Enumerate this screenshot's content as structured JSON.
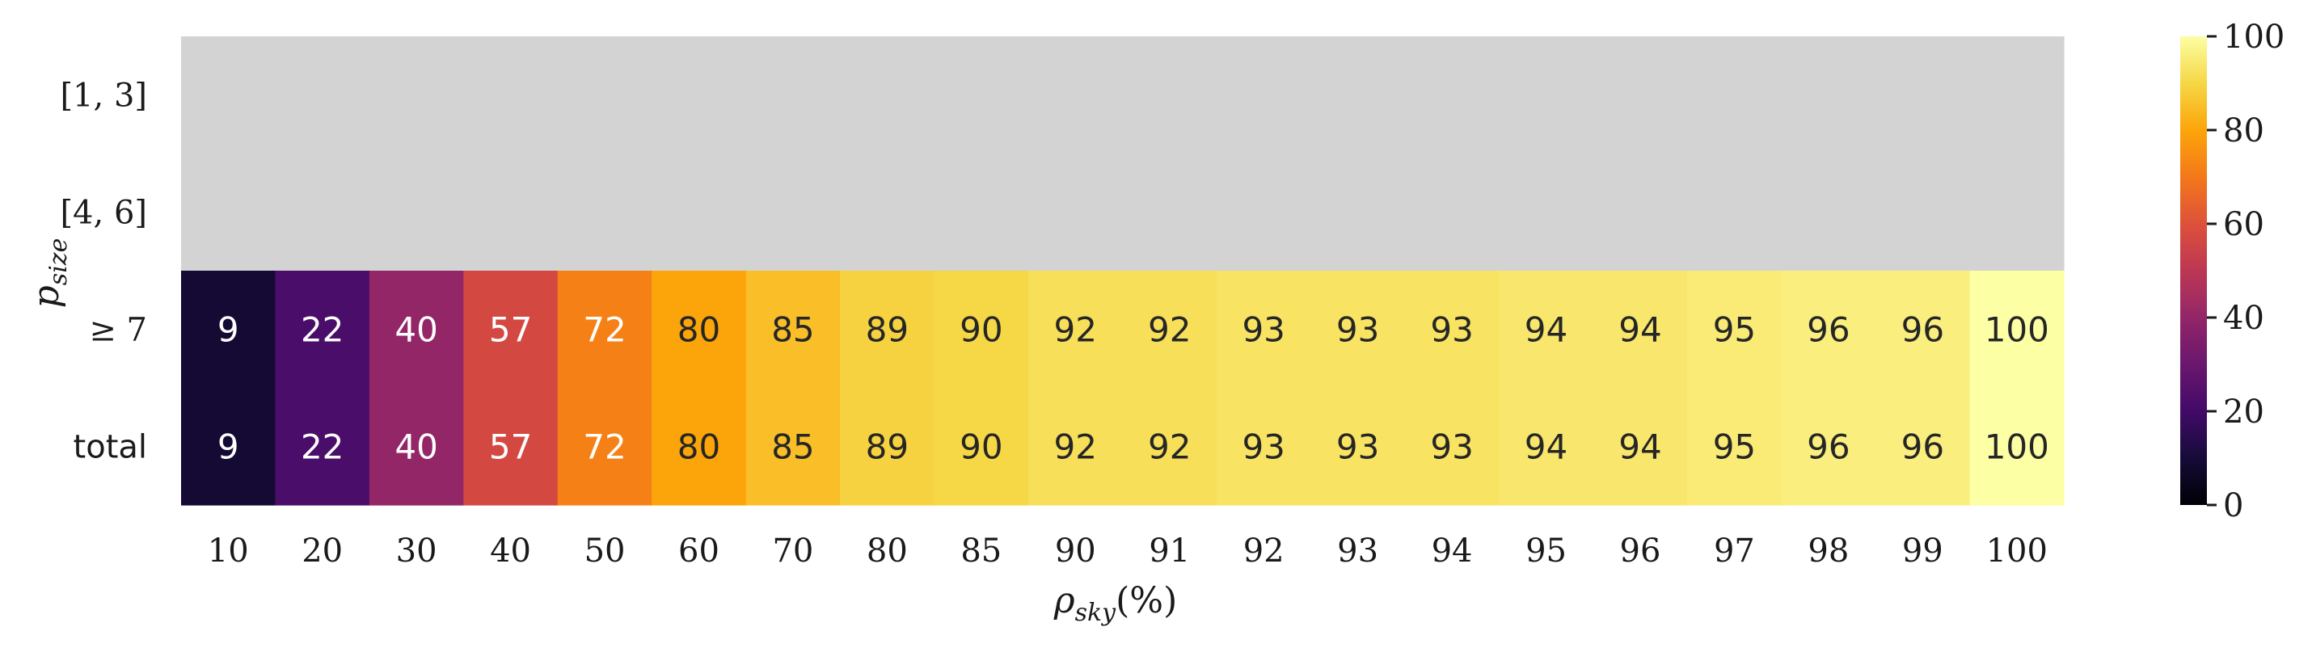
{
  "chart_data": {
    "type": "heatmap",
    "xlabel_base": "ρ",
    "xlabel_sub": "sky",
    "xlabel_tail": "(%)",
    "ylabel_base": "p",
    "ylabel_sub": "size",
    "x_categories": [
      "10",
      "20",
      "30",
      "40",
      "50",
      "60",
      "70",
      "80",
      "85",
      "90",
      "91",
      "92",
      "93",
      "94",
      "95",
      "96",
      "97",
      "98",
      "99",
      "100"
    ],
    "y_categories": [
      "[1, 3]",
      "[4, 6]",
      "≥ 7",
      "total"
    ],
    "values": [
      [
        null,
        null,
        null,
        null,
        null,
        null,
        null,
        null,
        null,
        null,
        null,
        null,
        null,
        null,
        null,
        null,
        null,
        null,
        null,
        null
      ],
      [
        null,
        null,
        null,
        null,
        null,
        null,
        null,
        null,
        null,
        null,
        null,
        null,
        null,
        null,
        null,
        null,
        null,
        null,
        null,
        null
      ],
      [
        9,
        22,
        40,
        57,
        72,
        80,
        85,
        89,
        90,
        92,
        92,
        93,
        93,
        93,
        94,
        94,
        95,
        96,
        96,
        100
      ],
      [
        9,
        22,
        40,
        57,
        72,
        80,
        85,
        89,
        90,
        92,
        92,
        93,
        93,
        93,
        94,
        94,
        95,
        96,
        96,
        100
      ]
    ],
    "colormap": "inferno",
    "missing_color": "#d3d3d3",
    "colorbar": {
      "range": [
        0,
        100
      ],
      "ticks": [
        "0",
        "20",
        "40",
        "60",
        "80",
        "100"
      ]
    },
    "cell_annotations": true,
    "grid": false
  }
}
